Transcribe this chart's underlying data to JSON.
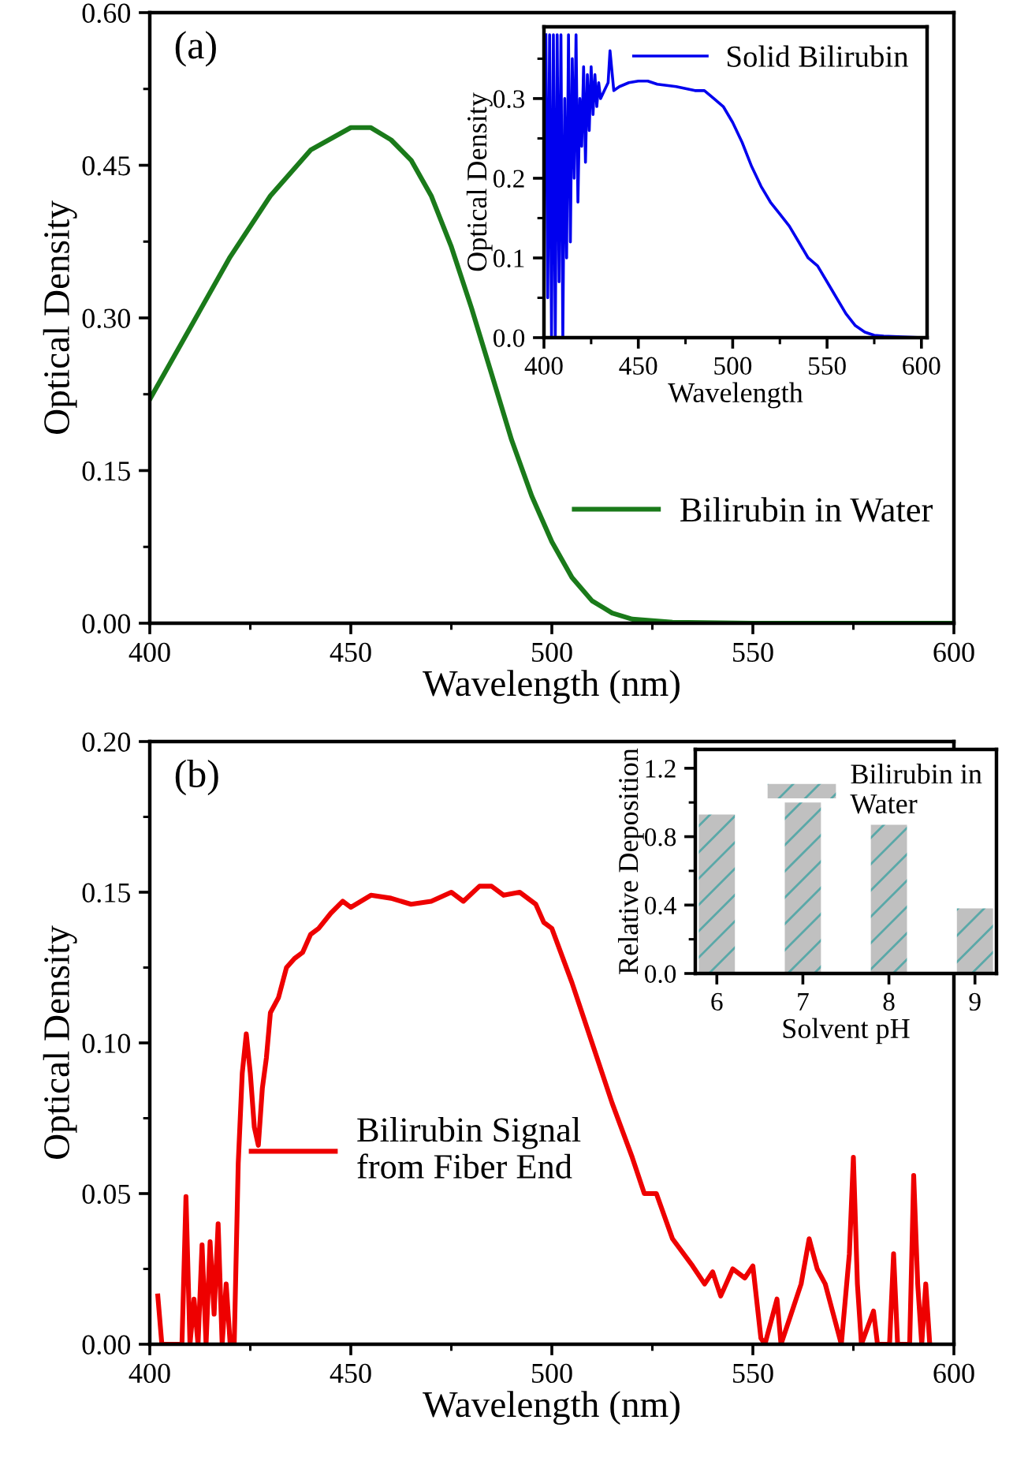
{
  "chart_data": [
    {
      "type": "line",
      "xlabel": "Wavelength (nm)",
      "ylabel": "Optical Density",
      "annotations": [
        "(a)"
      ],
      "legend": "bottom right",
      "xlim": [
        400,
        600
      ],
      "xticks": [
        400,
        450,
        500,
        550,
        600
      ],
      "ylim": [
        0,
        0.6
      ],
      "yticks": [
        {
          "value": 0,
          "label": "0.00"
        },
        {
          "value": 0.15,
          "label": "0.15"
        },
        {
          "value": 0.3,
          "label": "0.30"
        },
        {
          "value": 0.45,
          "label": "0.45"
        },
        {
          "value": 0.6,
          "label": "0.60"
        }
      ],
      "series": [
        {
          "name": "Bilirubin in Water",
          "color": "#1a7a1a",
          "x": [
            400,
            410,
            420,
            430,
            440,
            450,
            455,
            460,
            465,
            470,
            475,
            480,
            485,
            490,
            495,
            500,
            505,
            510,
            515,
            520,
            530,
            550,
            600
          ],
          "values": [
            0.22,
            0.29,
            0.36,
            0.42,
            0.465,
            0.487,
            0.487,
            0.475,
            0.455,
            0.42,
            0.37,
            0.31,
            0.245,
            0.18,
            0.125,
            0.08,
            0.045,
            0.022,
            0.01,
            0.004,
            0.001,
            0,
            0
          ]
        }
      ]
    },
    {
      "type": "line",
      "xlabel": "Wavelength",
      "ylabel": "Optical Density",
      "legend": "top right",
      "xlim": [
        400,
        603
      ],
      "xticks": [
        400,
        450,
        500,
        550,
        600
      ],
      "ylim": [
        0,
        0.39
      ],
      "yticks": [
        {
          "value": 0,
          "label": "0.0"
        },
        {
          "value": 0.1,
          "label": "0.1"
        },
        {
          "value": 0.2,
          "label": "0.2"
        },
        {
          "value": 0.3,
          "label": "0.3"
        }
      ],
      "series": [
        {
          "name": "Solid Bilirubin",
          "color": "#0000ee",
          "x": [
            401,
            402,
            403,
            404,
            405,
            406,
            407,
            408,
            409,
            410,
            411,
            412,
            413,
            414,
            415,
            416,
            417,
            418,
            419,
            420,
            421,
            422,
            423,
            424,
            425,
            426,
            427,
            428,
            429,
            430,
            432,
            434,
            435,
            437,
            440,
            445,
            450,
            455,
            460,
            470,
            480,
            485,
            490,
            495,
            500,
            505,
            510,
            515,
            520,
            525,
            530,
            535,
            540,
            545,
            550,
            555,
            560,
            565,
            570,
            575,
            580,
            590,
            600
          ],
          "values": [
            0.38,
            0.05,
            0.38,
            0,
            0.38,
            0,
            0.38,
            0.07,
            0.38,
            0,
            0.3,
            0.1,
            0.38,
            0.12,
            0.35,
            0.2,
            0.38,
            0.17,
            0.3,
            0.24,
            0.34,
            0.22,
            0.33,
            0.26,
            0.34,
            0.28,
            0.33,
            0.29,
            0.32,
            0.3,
            0.31,
            0.32,
            0.36,
            0.31,
            0.315,
            0.32,
            0.322,
            0.322,
            0.318,
            0.315,
            0.31,
            0.31,
            0.3,
            0.29,
            0.27,
            0.245,
            0.215,
            0.19,
            0.17,
            0.155,
            0.14,
            0.12,
            0.1,
            0.09,
            0.07,
            0.05,
            0.03,
            0.015,
            0.007,
            0.003,
            0.002,
            0.001,
            0
          ]
        }
      ]
    },
    {
      "type": "line",
      "xlabel": "Wavelength (nm)",
      "ylabel": "Optical Density",
      "annotations": [
        "(b)"
      ],
      "legend": "left",
      "xlim": [
        400,
        600
      ],
      "xticks": [
        400,
        450,
        500,
        550,
        600
      ],
      "ylim": [
        0,
        0.2
      ],
      "yticks": [
        {
          "value": 0,
          "label": "0.00"
        },
        {
          "value": 0.05,
          "label": "0.05"
        },
        {
          "value": 0.1,
          "label": "0.10"
        },
        {
          "value": 0.15,
          "label": "0.15"
        },
        {
          "value": 0.2,
          "label": "0.20"
        }
      ],
      "series": [
        {
          "name": "Bilirubin Signal\nfrom Fiber End",
          "color": "#ee0000",
          "x": [
            402,
            403,
            408,
            409,
            410,
            411,
            412,
            413,
            414,
            415,
            416,
            417,
            418,
            419,
            420,
            421,
            422,
            423,
            424,
            425,
            426,
            427,
            428,
            429,
            430,
            432,
            434,
            436,
            438,
            440,
            442,
            445,
            448,
            450,
            455,
            460,
            465,
            470,
            475,
            478,
            482,
            485,
            488,
            492,
            496,
            498,
            500,
            505,
            510,
            515,
            520,
            523,
            526,
            530,
            535,
            538,
            540,
            542,
            545,
            548,
            550,
            552,
            553,
            556,
            557,
            560,
            562,
            564,
            566,
            568,
            570,
            572,
            574,
            575,
            576,
            577,
            580,
            581,
            584,
            585,
            586,
            589,
            590,
            591,
            592,
            593,
            594
          ],
          "values": [
            0.016,
            0,
            0,
            0.049,
            0,
            0.015,
            0,
            0.033,
            0,
            0.034,
            0.01,
            0.04,
            0,
            0.02,
            0,
            0,
            0.06,
            0.09,
            0.103,
            0.09,
            0.072,
            0.066,
            0.085,
            0.095,
            0.11,
            0.115,
            0.125,
            0.128,
            0.13,
            0.136,
            0.138,
            0.143,
            0.147,
            0.145,
            0.149,
            0.148,
            0.146,
            0.147,
            0.15,
            0.147,
            0.152,
            0.152,
            0.149,
            0.15,
            0.146,
            0.14,
            0.138,
            0.12,
            0.1,
            0.08,
            0.062,
            0.05,
            0.05,
            0.035,
            0.026,
            0.02,
            0.024,
            0.016,
            0.025,
            0.022,
            0.026,
            0.002,
            0,
            0.015,
            0,
            0.012,
            0.02,
            0.035,
            0.025,
            0.02,
            0.01,
            0,
            0.03,
            0.062,
            0.02,
            0,
            0.011,
            0,
            0,
            0.03,
            0,
            0,
            0.056,
            0.02,
            0,
            0.02,
            0
          ]
        }
      ]
    },
    {
      "type": "bar",
      "xlabel": "Solvent pH",
      "ylabel": "Relative Deposition",
      "legend": "top right",
      "categories": [
        "6",
        "7",
        "8",
        "9"
      ],
      "ylim": [
        0,
        1.31
      ],
      "yticks": [
        {
          "value": 0,
          "label": "0.0"
        },
        {
          "value": 0.4,
          "label": "0.4"
        },
        {
          "value": 0.8,
          "label": "0.8"
        },
        {
          "value": 1.2,
          "label": "1.2"
        }
      ],
      "series": [
        {
          "name": "Bilirubin in\nWater",
          "color": "#c0c0c0",
          "values": [
            0.93,
            1.0,
            0.87,
            0.38
          ]
        }
      ]
    }
  ]
}
